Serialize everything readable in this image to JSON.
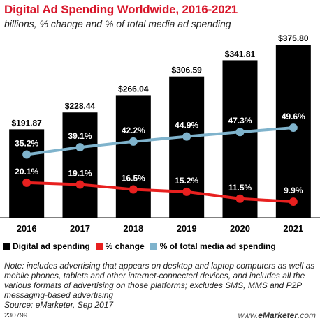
{
  "title": "Digital Ad Spending Worldwide, 2016-2021",
  "subtitle": "billions, % change and % of total media ad spending",
  "colors": {
    "title": "#d8162a",
    "bar": "#000000",
    "change": "#e8201f",
    "share": "#7fb3cc"
  },
  "chart_data": {
    "type": "bar",
    "categories": [
      "2016",
      "2017",
      "2018",
      "2019",
      "2020",
      "2021"
    ],
    "bar_labels": [
      "$191.87",
      "$228.44",
      "$266.04",
      "$306.59",
      "$341.81",
      "$375.80"
    ],
    "series": [
      {
        "name": "Digital ad spending",
        "type": "bar",
        "values": [
          191.87,
          228.44,
          266.04,
          306.59,
          341.81,
          375.8
        ]
      },
      {
        "name": "% change",
        "type": "line",
        "values": [
          20.1,
          19.1,
          16.5,
          15.2,
          11.5,
          9.9
        ],
        "labels": [
          "20.1%",
          "19.1%",
          "16.5%",
          "15.2%",
          "11.5%",
          "9.9%"
        ]
      },
      {
        "name": "% of total media ad spending",
        "type": "line",
        "values": [
          35.2,
          39.1,
          42.2,
          44.9,
          47.3,
          49.6
        ],
        "labels": [
          "35.2%",
          "39.1%",
          "42.2%",
          "44.9%",
          "47.3%",
          "49.6%"
        ]
      }
    ],
    "legend_placement": "bottom"
  },
  "legend": [
    "Digital ad spending",
    "% change",
    "% of total media ad spending"
  ],
  "note": "Note: includes advertising that appears on desktop and laptop computers as well as mobile phones, tablets and other internet-connected devices, and includes all the various formats of advertising on those platforms; excludes SMS, MMS and P2P messaging-based advertising",
  "source": "Source: eMarketer, Sep 2017",
  "footer_id": "230799",
  "brand": {
    "prefix": "www.",
    "name": "eMarketer",
    "suffix": ".com"
  }
}
